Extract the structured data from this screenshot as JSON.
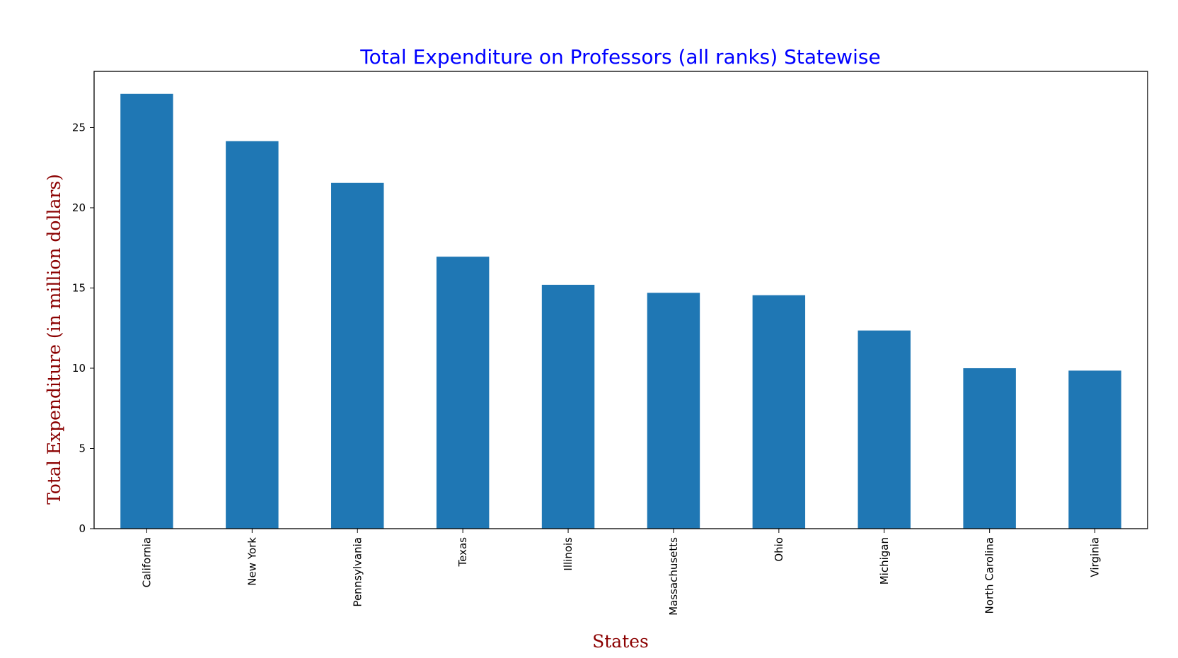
{
  "chart_data": {
    "type": "bar",
    "title": "Total Expenditure on Professors (all ranks) Statewise",
    "xlabel": "States",
    "ylabel": "Total Expenditure (in million dollars)",
    "categories": [
      "California",
      "New York",
      "Pennsylvania",
      "Texas",
      "Illinois",
      "Massachusetts",
      "Ohio",
      "Michigan",
      "North Carolina",
      "Virginia"
    ],
    "values": [
      27.1,
      24.15,
      21.55,
      16.95,
      15.2,
      14.7,
      14.55,
      12.35,
      10.0,
      9.85
    ],
    "ylim": [
      0,
      28.5
    ],
    "yticks": [
      0,
      5,
      10,
      15,
      20,
      25
    ],
    "grid": false,
    "legend": "none",
    "colors": {
      "bar": "#1f77b4",
      "title": "#0000ff",
      "axis_label": "#8b0000",
      "frame": "#000000"
    }
  }
}
